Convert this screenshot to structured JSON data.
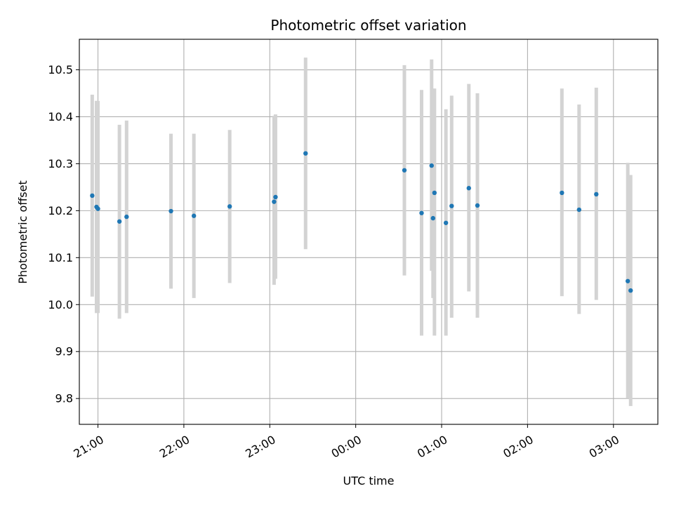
{
  "chart_data": {
    "type": "scatter",
    "title": "Photometric offset variation",
    "xlabel": "UTC time",
    "ylabel": "Photometric offset",
    "x_axis_kind": "time",
    "xlim": [
      "20:47",
      "03:31"
    ],
    "ylim": [
      9.745,
      10.565
    ],
    "x_ticks": [
      "21:00",
      "22:00",
      "23:00",
      "00:00",
      "01:00",
      "02:00",
      "03:00"
    ],
    "y_ticks": [
      "9.8",
      "9.9",
      "10.0",
      "10.1",
      "10.2",
      "10.3",
      "10.4",
      "10.5"
    ],
    "grid": true,
    "colors": {
      "points": "#1f77b4",
      "errorbars": "#d3d3d3"
    },
    "points": [
      {
        "t": "20:56",
        "y": 10.232,
        "ylo": 10.017,
        "yhi": 10.447
      },
      {
        "t": "20:59",
        "y": 10.208,
        "ylo": 9.982,
        "yhi": 10.434
      },
      {
        "t": "21:00",
        "y": 10.204,
        "ylo": 9.982,
        "yhi": 10.434
      },
      {
        "t": "21:15",
        "y": 10.177,
        "ylo": 9.97,
        "yhi": 10.383
      },
      {
        "t": "21:20",
        "y": 10.187,
        "ylo": 9.982,
        "yhi": 10.392
      },
      {
        "t": "21:51",
        "y": 10.199,
        "ylo": 10.034,
        "yhi": 10.364
      },
      {
        "t": "22:07",
        "y": 10.189,
        "ylo": 10.014,
        "yhi": 10.364
      },
      {
        "t": "22:32",
        "y": 10.209,
        "ylo": 10.046,
        "yhi": 10.372
      },
      {
        "t": "23:03",
        "y": 10.219,
        "ylo": 10.042,
        "yhi": 10.402
      },
      {
        "t": "23:04",
        "y": 10.229,
        "ylo": 10.055,
        "yhi": 10.405
      },
      {
        "t": "23:25",
        "y": 10.322,
        "ylo": 10.118,
        "yhi": 10.526
      },
      {
        "t": "00:34",
        "y": 10.286,
        "ylo": 10.062,
        "yhi": 10.51
      },
      {
        "t": "00:46",
        "y": 10.195,
        "ylo": 9.934,
        "yhi": 10.457
      },
      {
        "t": "00:53",
        "y": 10.296,
        "ylo": 10.072,
        "yhi": 10.522
      },
      {
        "t": "00:54",
        "y": 10.184,
        "ylo": 10.014,
        "yhi": 10.46
      },
      {
        "t": "00:55",
        "y": 10.238,
        "ylo": 9.934,
        "yhi": 10.46
      },
      {
        "t": "01:03",
        "y": 10.174,
        "ylo": 9.934,
        "yhi": 10.416
      },
      {
        "t": "01:07",
        "y": 10.21,
        "ylo": 9.972,
        "yhi": 10.445
      },
      {
        "t": "01:19",
        "y": 10.248,
        "ylo": 10.028,
        "yhi": 10.47
      },
      {
        "t": "01:25",
        "y": 10.211,
        "ylo": 9.972,
        "yhi": 10.45
      },
      {
        "t": "02:24",
        "y": 10.238,
        "ylo": 10.018,
        "yhi": 10.46
      },
      {
        "t": "02:36",
        "y": 10.202,
        "ylo": 9.98,
        "yhi": 10.426
      },
      {
        "t": "02:48",
        "y": 10.235,
        "ylo": 10.01,
        "yhi": 10.462
      },
      {
        "t": "03:10",
        "y": 10.05,
        "ylo": 9.8,
        "yhi": 10.302
      },
      {
        "t": "03:12",
        "y": 10.03,
        "ylo": 9.784,
        "yhi": 10.276
      }
    ]
  }
}
